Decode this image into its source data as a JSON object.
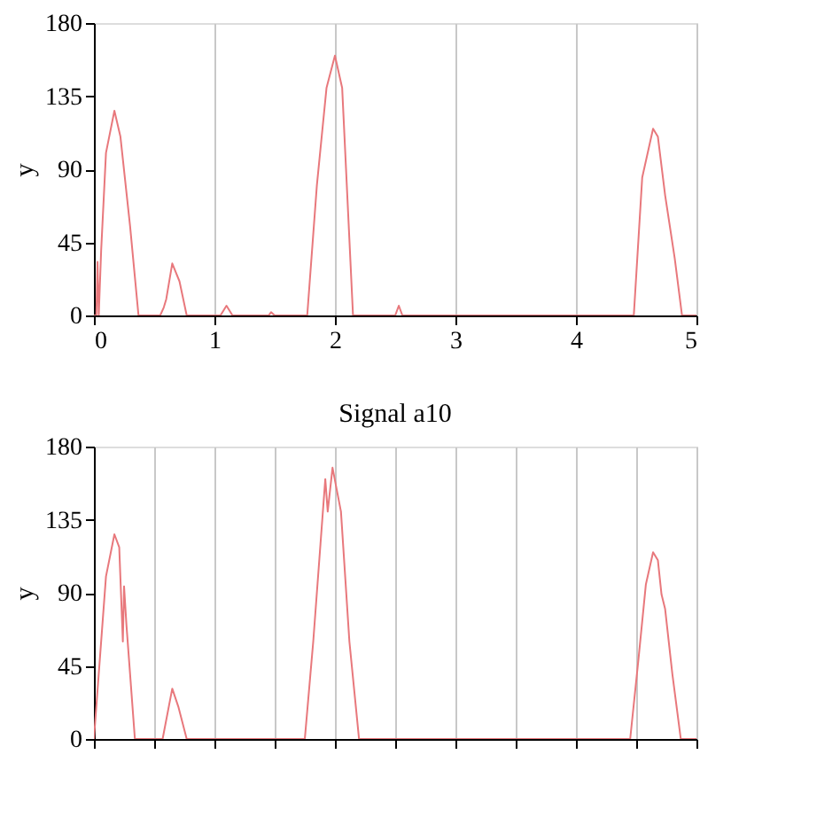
{
  "chart_data": [
    {
      "type": "line",
      "ylabel": "y",
      "xlim": [
        0,
        5
      ],
      "xticks": [
        0,
        1,
        2,
        3,
        4,
        5
      ],
      "ylim": [
        0,
        180
      ],
      "yticks": [
        0,
        45,
        90,
        135,
        180
      ],
      "grid": "x",
      "series": [
        {
          "color": "#e8787c",
          "x": [
            0,
            0.02,
            0.03,
            0.04,
            0.06,
            0.1,
            0.17,
            0.22,
            0.3,
            0.37,
            0.45,
            0.55,
            0.58,
            0.6,
            0.65,
            0.71,
            0.77,
            0.85,
            1.05,
            1.1,
            1.15,
            1.3,
            1.45,
            1.47,
            1.5,
            1.77,
            1.85,
            1.93,
            2.0,
            2.06,
            2.15,
            2.3,
            2.5,
            2.53,
            2.56,
            3.0,
            4.0,
            4.48,
            4.55,
            4.64,
            4.68,
            4.74,
            4.82,
            4.88,
            5.0
          ],
          "values": [
            0,
            0,
            33,
            0,
            40,
            100,
            126,
            110,
            55,
            0,
            0,
            0,
            5,
            10,
            32,
            21,
            0,
            0,
            0,
            6,
            0,
            0,
            0,
            2,
            0,
            0,
            80,
            140,
            160,
            140,
            0,
            0,
            0,
            6,
            0,
            0,
            0,
            0,
            85,
            115,
            110,
            74,
            35,
            0,
            0
          ]
        }
      ]
    },
    {
      "type": "line",
      "title": "Signal a10",
      "ylabel": "y",
      "xlim": [
        0,
        5
      ],
      "xticks": [
        {
          "value": 0,
          "label": null
        },
        {
          "value": 0.5,
          "label": null
        },
        {
          "value": 1,
          "label": null
        },
        {
          "value": 1.5,
          "label": null
        },
        {
          "value": 2,
          "label": null
        },
        {
          "value": 2.5,
          "label": null
        },
        {
          "value": 3,
          "label": null
        },
        {
          "value": 3.5,
          "label": null
        },
        {
          "value": 4,
          "label": null
        },
        {
          "value": 4.5,
          "label": null
        },
        {
          "value": 5,
          "label": null
        }
      ],
      "ylim": [
        0,
        180
      ],
      "yticks": [
        0,
        45,
        90,
        135,
        180
      ],
      "grid": "x",
      "tick_labels": "y",
      "series": [
        {
          "color": "#e8787c",
          "x": [
            0,
            0.03,
            0.1,
            0.17,
            0.21,
            0.24,
            0.25,
            0.27,
            0.3,
            0.34,
            0.45,
            0.57,
            0.65,
            0.7,
            0.77,
            0.9,
            1.75,
            1.82,
            1.88,
            1.92,
            1.94,
            1.98,
            2.05,
            2.12,
            2.2,
            2.5,
            4.45,
            4.52,
            4.58,
            4.64,
            4.68,
            4.71,
            4.74,
            4.8,
            4.87,
            5.0
          ],
          "values": [
            0,
            30,
            100,
            126,
            118,
            60,
            94,
            70,
            40,
            0,
            0,
            0,
            31,
            20,
            0,
            0,
            0,
            60,
            120,
            160,
            140,
            167,
            140,
            60,
            0,
            0,
            0,
            50,
            95,
            115,
            110,
            89,
            80,
            40,
            0,
            0
          ]
        }
      ]
    }
  ]
}
